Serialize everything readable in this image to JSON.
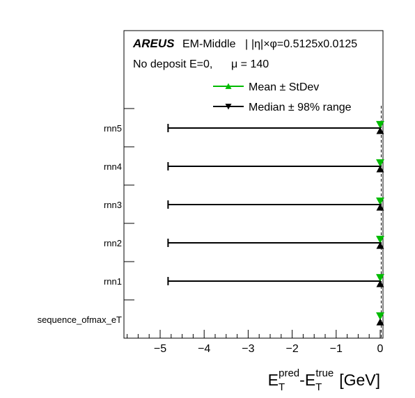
{
  "chart_data": {
    "type": "scatter",
    "header": {
      "experiment": "AREUS",
      "region": "EM-Middle",
      "binning": "|η|×φ=0.5125x0.0125",
      "condition": "No deposit E=0,",
      "pileup": "μ = 140"
    },
    "xlabel": {
      "main1": "E",
      "sup1": "pred",
      "sub1": "T",
      "dash": "-",
      "main2": "E",
      "sup2": "true",
      "sub2": "T",
      "unit": "[GeV]"
    },
    "xlim": [
      -5.75,
      0.0
    ],
    "xticks": [
      {
        "value": -5,
        "label": "−5"
      },
      {
        "value": -4,
        "label": "−4"
      },
      {
        "value": -3,
        "label": "−3"
      },
      {
        "value": -2,
        "label": "−2"
      },
      {
        "value": -1,
        "label": "−1"
      },
      {
        "value": 0,
        "label": "0"
      }
    ],
    "categories": [
      "sequence_ofmax_eT",
      "rnn1",
      "rnn2",
      "rnn3",
      "rnn4",
      "rnn5"
    ],
    "legend": {
      "placement": "top-right",
      "entries": [
        {
          "label": "Mean ± StDev",
          "color": "#00bb00",
          "marker": "triangle-up"
        },
        {
          "label": "Median ± 98% range",
          "color": "#000000",
          "marker": "triangle-down"
        }
      ]
    },
    "series": [
      {
        "name": "Mean ± StDev",
        "color": "#00bb00",
        "points": [
          {
            "category": "sequence_ofmax_eT",
            "value": 0.0,
            "low": 0.0,
            "high": 0.0
          },
          {
            "category": "rnn1",
            "value": 0.0,
            "low": -0.02,
            "high": 0.02
          },
          {
            "category": "rnn2",
            "value": 0.0,
            "low": -0.02,
            "high": 0.02
          },
          {
            "category": "rnn3",
            "value": 0.0,
            "low": -0.02,
            "high": 0.02
          },
          {
            "category": "rnn4",
            "value": 0.0,
            "low": -0.02,
            "high": 0.02
          },
          {
            "category": "rnn5",
            "value": 0.0,
            "low": -0.02,
            "high": 0.02
          }
        ]
      },
      {
        "name": "Median ± 98% range",
        "color": "#000000",
        "points": [
          {
            "category": "sequence_ofmax_eT",
            "value": 0.0,
            "low": 0.0,
            "high": 0.0
          },
          {
            "category": "rnn1",
            "value": 0.0,
            "low": -4.82,
            "high": 0.0
          },
          {
            "category": "rnn2",
            "value": 0.0,
            "low": -4.82,
            "high": 0.0
          },
          {
            "category": "rnn3",
            "value": 0.0,
            "low": -4.82,
            "high": 0.0
          },
          {
            "category": "rnn4",
            "value": 0.0,
            "low": -4.82,
            "high": 0.0
          },
          {
            "category": "rnn5",
            "value": 0.0,
            "low": -4.82,
            "high": 0.0
          }
        ]
      }
    ],
    "reference_line": {
      "x": 0.0,
      "style": "dashed"
    }
  }
}
